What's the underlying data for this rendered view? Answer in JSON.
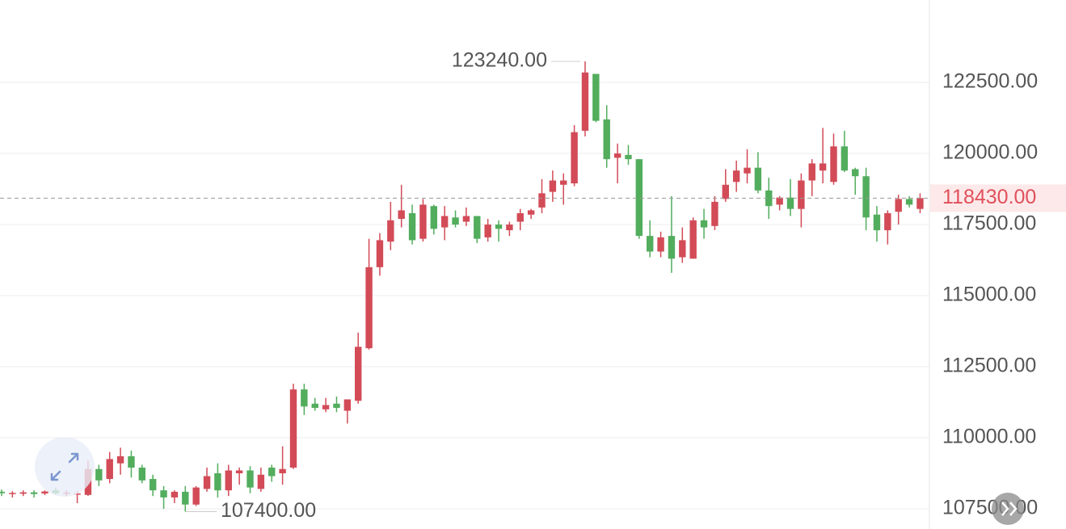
{
  "chart_data": {
    "type": "candlestick",
    "open": [
      108100,
      108020,
      108030,
      108080,
      108040,
      108150,
      108030,
      108000,
      107990,
      108900,
      108550,
      109100,
      109350,
      108950,
      108550,
      108150,
      107900,
      108100,
      107650,
      108200,
      108750,
      108150,
      108750,
      108850,
      108200,
      108950,
      108750,
      108950,
      111700,
      111200,
      111000,
      111200,
      110950,
      111300,
      113150,
      116000,
      116900,
      117700,
      117900,
      117000,
      118150,
      117400,
      117750,
      117600,
      117800,
      117050,
      117500,
      117300,
      117600,
      117850,
      118100,
      118650,
      118900,
      118950,
      120800,
      122800,
      121200,
      119850,
      119950,
      119800,
      117100,
      116550,
      117100,
      116350,
      116300,
      117650,
      117450,
      118400,
      119000,
      119300,
      119500,
      118700,
      118200,
      118450,
      118050,
      119050,
      119400,
      119000,
      120250,
      119450,
      119200,
      117850,
      117300,
      117950,
      118400,
      118050
    ],
    "high": [
      108180,
      108120,
      108150,
      108150,
      108150,
      108230,
      108150,
      108120,
      109200,
      109050,
      109500,
      109650,
      109550,
      109050,
      108700,
      108300,
      108150,
      108300,
      108300,
      108950,
      109100,
      109050,
      108950,
      109000,
      108950,
      109050,
      109700,
      111900,
      111900,
      111400,
      111400,
      111450,
      111300,
      113700,
      117000,
      117200,
      118300,
      118900,
      118200,
      118400,
      118200,
      118150,
      118000,
      118100,
      117800,
      117700,
      117650,
      117600,
      118050,
      118050,
      119100,
      119400,
      119300,
      121000,
      123240,
      122800,
      121700,
      120350,
      120300,
      119800,
      117650,
      117250,
      118500,
      117400,
      117750,
      118050,
      118500,
      119450,
      119750,
      120150,
      120050,
      119150,
      118500,
      119100,
      119300,
      119800,
      120900,
      120700,
      120800,
      119500,
      119500,
      118150,
      118000,
      118550,
      118500,
      118600
    ],
    "low": [
      107950,
      107900,
      107950,
      107900,
      107980,
      108000,
      107950,
      107700,
      107950,
      108300,
      108400,
      108700,
      108600,
      108400,
      107950,
      107500,
      107700,
      107400,
      107600,
      108100,
      107900,
      107950,
      108350,
      108050,
      108100,
      108450,
      108350,
      108900,
      110800,
      110950,
      110900,
      110900,
      110500,
      111200,
      113100,
      115700,
      116600,
      117400,
      116800,
      116900,
      117150,
      116950,
      117400,
      117450,
      116850,
      116900,
      116900,
      117100,
      117300,
      117700,
      117900,
      118300,
      118200,
      118850,
      120600,
      121100,
      119500,
      118950,
      119600,
      117000,
      116350,
      116350,
      115800,
      116150,
      116300,
      117000,
      117300,
      118300,
      118650,
      118950,
      118600,
      117700,
      118000,
      117800,
      117400,
      118500,
      118950,
      118900,
      119350,
      118550,
      117300,
      116900,
      116800,
      117500,
      118100,
      117900
    ],
    "close": [
      108050,
      108060,
      108080,
      108020,
      108110,
      108050,
      108070,
      108040,
      108900,
      108500,
      109250,
      109350,
      108950,
      108500,
      108150,
      107900,
      108100,
      107650,
      108250,
      108650,
      108150,
      108850,
      108850,
      108250,
      108700,
      108650,
      108900,
      111700,
      111100,
      111050,
      111150,
      111050,
      111350,
      113200,
      116000,
      116950,
      117650,
      118000,
      116950,
      118200,
      117350,
      117800,
      117500,
      117800,
      117000,
      117500,
      117350,
      117500,
      117900,
      118000,
      118600,
      119050,
      119050,
      120750,
      122850,
      121150,
      119800,
      120000,
      119800,
      117100,
      116550,
      117050,
      116300,
      116950,
      117650,
      117400,
      118300,
      118900,
      119400,
      119500,
      118700,
      118150,
      118450,
      118050,
      119050,
      119650,
      119650,
      120250,
      119400,
      119200,
      117750,
      117300,
      117900,
      118400,
      118200,
      118430
    ],
    "up_color": "#d24b57",
    "down_color": "#52ad5d",
    "ylim": [
      106790,
      125400
    ],
    "yticks": [
      {
        "value": 107500,
        "label": "107500.00"
      },
      {
        "value": 110000,
        "label": "110000.00"
      },
      {
        "value": 112500,
        "label": "112500.00"
      },
      {
        "value": 115000,
        "label": "115000.00"
      },
      {
        "value": 117500,
        "label": "117500.00"
      },
      {
        "value": 120000,
        "label": "120000.00"
      },
      {
        "value": 122500,
        "label": "122500.00"
      }
    ],
    "grid": true,
    "max_label": {
      "value": 123240,
      "label": "123240.00"
    },
    "min_label": {
      "value": 107400,
      "label": "107400.00"
    },
    "last_price": {
      "value": 118430,
      "label": "118430.00"
    }
  }
}
